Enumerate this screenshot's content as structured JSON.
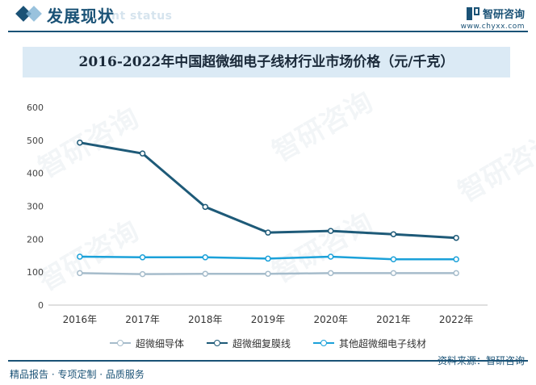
{
  "header": {
    "title": "发展现状",
    "subtitle": "ent status",
    "brand_name": "智研咨询",
    "brand_url": "www.chyxx.com"
  },
  "watermark_text": "智研咨询",
  "chart_data": {
    "type": "line",
    "title": "2016-2022年中国超微细电子线材行业市场价格（元/千克）",
    "categories": [
      "2016年",
      "2017年",
      "2018年",
      "2019年",
      "2020年",
      "2021年",
      "2022年"
    ],
    "ylim": [
      0,
      600
    ],
    "yticks": [
      0,
      100,
      200,
      300,
      400,
      500,
      600
    ],
    "grid": false,
    "legend_position": "bottom",
    "series": [
      {
        "name": "超微细导体",
        "color": "#a6bccb",
        "values": [
          97,
          94,
          95,
          95,
          97,
          97,
          97
        ]
      },
      {
        "name": "超微细复膜线",
        "color": "#1e5a78",
        "values": [
          493,
          460,
          298,
          220,
          225,
          215,
          204
        ]
      },
      {
        "name": "其他超微细电子线材",
        "color": "#1ba1d9",
        "values": [
          147,
          145,
          145,
          141,
          147,
          139,
          139
        ]
      }
    ]
  },
  "footer": {
    "left_text": "精品报告 · 专项定制 · 品质服务",
    "source_text": "资料来源：智研咨询"
  }
}
